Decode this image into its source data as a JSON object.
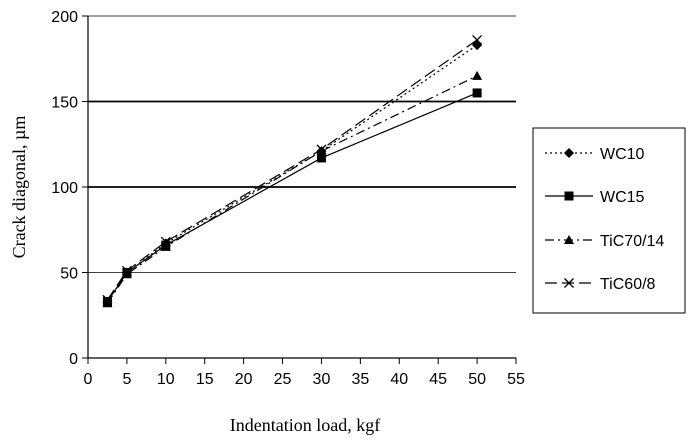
{
  "chart_data": {
    "type": "line",
    "title": "",
    "xlabel": "Indentation load, kgf",
    "ylabel": "Crack diagonal, µm",
    "xlim": [
      0,
      55
    ],
    "ylim": [
      0,
      200
    ],
    "xticks": [
      0,
      5,
      10,
      15,
      20,
      25,
      30,
      35,
      40,
      45,
      50,
      55
    ],
    "yticks": [
      0,
      50,
      100,
      150,
      200
    ],
    "grid": "horizontal at 50, 100, 150",
    "legend_position": "right",
    "series": [
      {
        "name": "WC10",
        "marker": "diamond",
        "dash": "dotted",
        "x": [
          2.5,
          5,
          10,
          30,
          50
        ],
        "y": [
          33,
          50,
          67,
          121,
          183
        ]
      },
      {
        "name": "WC15",
        "marker": "square",
        "dash": "solid",
        "x": [
          2.5,
          5,
          10,
          30,
          50
        ],
        "y": [
          33,
          50,
          66,
          117,
          155
        ]
      },
      {
        "name": "TiC70/14",
        "marker": "triangle",
        "dash": "dash-dot",
        "x": [
          2.5,
          5,
          10,
          30,
          50
        ],
        "y": [
          32,
          49,
          65,
          121,
          165
        ]
      },
      {
        "name": "TiC60/8",
        "marker": "x",
        "dash": "long-dash",
        "x": [
          2.5,
          5,
          10,
          30,
          50
        ],
        "y": [
          34,
          51,
          68,
          122,
          186
        ]
      }
    ]
  }
}
